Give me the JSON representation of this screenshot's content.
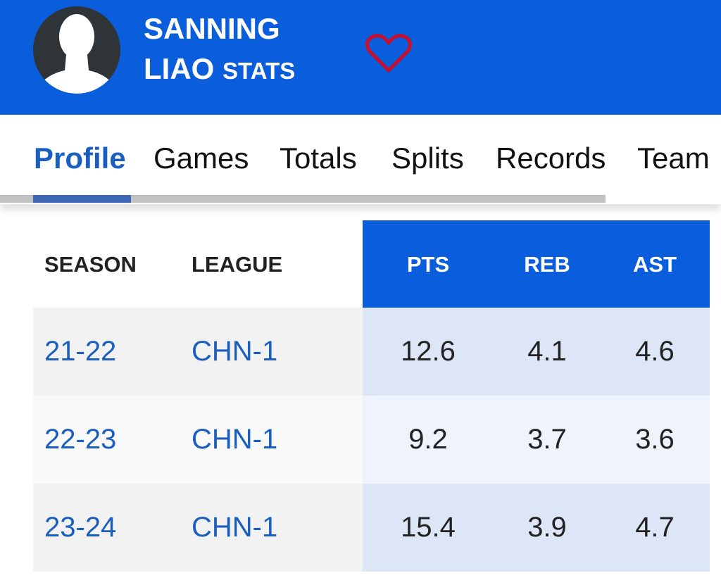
{
  "header": {
    "name_first": "SANNING",
    "name_last": "LIAO",
    "suffix": "STATS"
  },
  "tabs": [
    "Profile",
    "Games",
    "Totals",
    "Splits",
    "Records",
    "Team"
  ],
  "table": {
    "columns": [
      "SEASON",
      "LEAGUE",
      "PTS",
      "REB",
      "AST"
    ],
    "rows": [
      [
        "21-22",
        "CHN-1",
        "12.6",
        "4.1",
        "4.6"
      ],
      [
        "22-23",
        "CHN-1",
        "9.2",
        "3.7",
        "3.6"
      ],
      [
        "23-24",
        "CHN-1",
        "15.4",
        "3.9",
        "4.7"
      ]
    ]
  }
}
